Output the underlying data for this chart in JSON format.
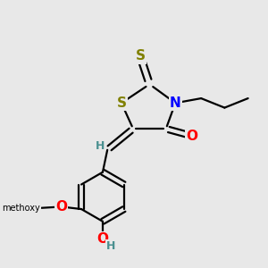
{
  "background_color": "#e8e8e8",
  "atom_colors": {
    "S": "#808000",
    "N": "#0000ff",
    "O": "#ff0000",
    "C": "#000000",
    "H": "#4a9090"
  },
  "bond_color": "#000000",
  "bond_width": 1.6,
  "font_size_atoms": 10
}
